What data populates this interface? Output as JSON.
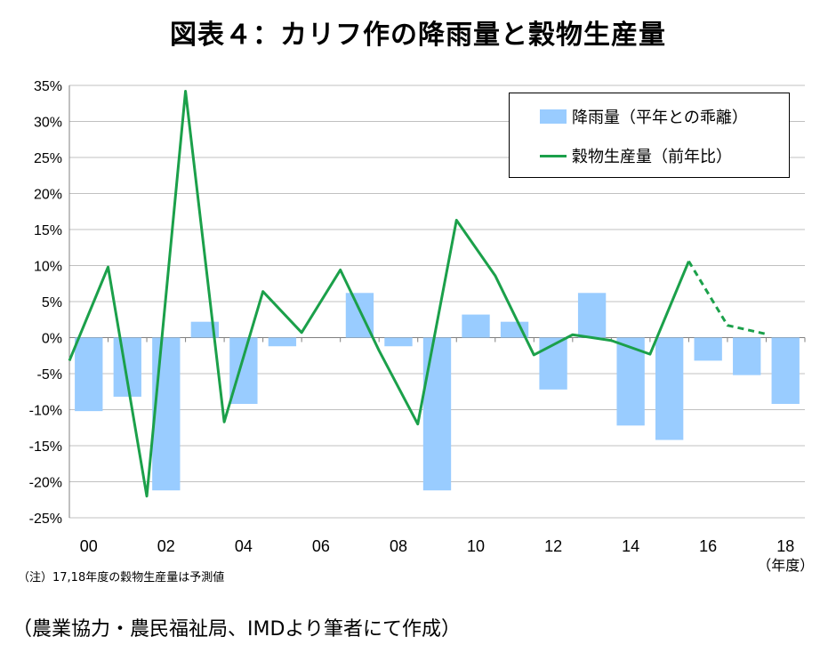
{
  "title": "図表４：カリフ作の降雨量と穀物生産量",
  "note": "（注）17,18年度の穀物生産量は予測値",
  "source": "（農業協力・農民福祉局、IMDより筆者にて作成）",
  "colors": {
    "bar": "#99ccff",
    "line": "#1ba04a",
    "grid": "#c0c0c0"
  },
  "chart_data": {
    "type": "bar+line",
    "x": [
      0,
      1,
      2,
      3,
      4,
      5,
      6,
      7,
      8,
      9,
      10,
      11,
      12,
      13,
      14,
      15,
      16,
      17,
      18
    ],
    "x_tick_labels": [
      "00",
      "02",
      "04",
      "06",
      "08",
      "10",
      "12",
      "14",
      "16",
      "18"
    ],
    "x_tick_positions": [
      0,
      2,
      4,
      6,
      8,
      10,
      12,
      14,
      16,
      18
    ],
    "x_unit_label": "（年度）",
    "y_tick_labels": [
      "35%",
      "30%",
      "25%",
      "20%",
      "15%",
      "10%",
      "5%",
      "0%",
      "-5%",
      "-10%",
      "-15%",
      "-20%",
      "-25%"
    ],
    "ylim": [
      -25,
      35
    ],
    "grid": true,
    "legend_position": "top-right",
    "series": [
      {
        "name": "降雨量（平年との乖離）",
        "type": "bar",
        "values": [
          -10.2,
          -8.2,
          -21.2,
          2.2,
          -9.2,
          -1.2,
          null,
          6.2,
          -1.2,
          -21.2,
          3.2,
          2.2,
          -7.2,
          6.2,
          -12.2,
          -14.2,
          -3.2,
          -5.2,
          -9.2
        ]
      },
      {
        "name": "穀物生産量（前年比）",
        "type": "line",
        "values": [
          -3.2,
          9.8,
          -22.0,
          34.2,
          -11.7,
          6.4,
          0.7,
          9.4,
          -1.8,
          -12.0,
          16.3,
          8.6,
          -2.4,
          0.4,
          -0.4,
          -2.3,
          10.6,
          1.7,
          0.5
        ],
        "estimated_from_index": 16
      }
    ]
  }
}
